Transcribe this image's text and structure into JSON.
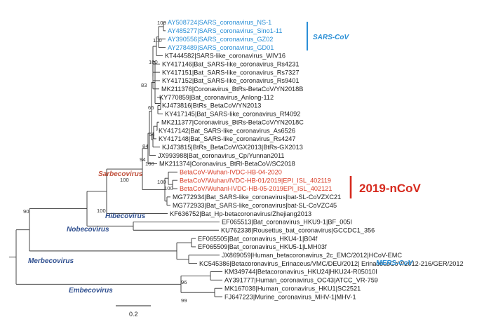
{
  "leaves": [
    {
      "label": "AY508724|SARS_coronavirus_NS-1",
      "group": "sars"
    },
    {
      "label": "AY485277|SARS_coronavirus_Sino1-11",
      "group": "sars"
    },
    {
      "label": "AY390556|SARS_coronavirus_GZ02",
      "group": "sars"
    },
    {
      "label": "AY278489|SARS_coronavirus_GD01",
      "group": "sars"
    },
    {
      "label": "KT444582|SARS-like_coronavirus_WIV16",
      "group": "other"
    },
    {
      "label": "KY417146|Bat_SARS-like_coronavirus_Rs4231",
      "group": "other"
    },
    {
      "label": "KY417151|Bat_SARS-like_coronavirus_Rs7327",
      "group": "other"
    },
    {
      "label": "KY417152|Bat_SARS-like_coronavirus_Rs9401",
      "group": "other"
    },
    {
      "label": "MK211376|Coronavirus_BtRs-BetaCoV/YN2018B",
      "group": "other"
    },
    {
      "label": "KY770859|Bat_coronavirus_Anlong-112",
      "group": "other"
    },
    {
      "label": "KJ473816|BtRs_BetaCoV/YN2013",
      "group": "other"
    },
    {
      "label": "KY417145|Bat_SARS-like_coronavirus_Rf4092",
      "group": "other"
    },
    {
      "label": "MK211377|Coronavirus_BtRs-BetaCoV/YN2018C",
      "group": "other"
    },
    {
      "label": "KY417142|Bat_SARS-like_coronavirus_As6526",
      "group": "other"
    },
    {
      "label": "KY417148|Bat_SARS-like_coronavirus_Rs4247",
      "group": "other"
    },
    {
      "label": "KJ473815|BtRs_BetaCoV/GX2013|BtRs-GX2013",
      "group": "other"
    },
    {
      "label": "JX993988|Bat_coronavirus_Cp/Yunnan2011",
      "group": "other"
    },
    {
      "label": "MK211374|Coronavirus_BtRl-BetaCoV/SC2018",
      "group": "other"
    },
    {
      "label": "BetaCoV-Wuhan-IVDC-HB-04-2020",
      "group": "ncov"
    },
    {
      "label": "BetaCoV/Wuhan/IVDC-HB-01/2019|EPI_ISL_402119",
      "group": "ncov"
    },
    {
      "label": "BetaCoV/Wuhanl-IVDC-HB-05-2019EPI_ISL_402121",
      "group": "ncov"
    },
    {
      "label": "MG772934|Bat_SARS-like_coronavirus|bat-SL-CoVZXC21",
      "group": "other"
    },
    {
      "label": "MG772933|Bat_SARS-like_coronavirus|bat-SL-CoVZC45",
      "group": "other"
    },
    {
      "label": "KF636752|Bat_Hp-betacoronavirus/Zhejiang2013",
      "group": "other"
    },
    {
      "label": "EF065513|Bat_coronavirus_HKU9-1|BF_005I",
      "group": "other"
    },
    {
      "label": "KU762338|Rousettus_bat_coronavirus|GCCDC1_356",
      "group": "other"
    },
    {
      "label": "EF065505|Bat_coronavirus_HKU4-1|B04f",
      "group": "other"
    },
    {
      "label": "EF065509|Bat_coronavirus_HKU5-1|LMH03f",
      "group": "other"
    },
    {
      "label": "JX869059|Human_betacoronavirus_2c_EMC/2012|HCoV-EMC",
      "group": "other"
    },
    {
      "label": "KC545386|Betacoronavirus_Erinaceus/VMC/DEU/2012| ErinaceusCoV/2012-216/GER/2012",
      "group": "other"
    },
    {
      "label": "KM349744|Betacoronavirus_HKU24|HKU24-R05010I",
      "group": "other"
    },
    {
      "label": "AY391777|Human_coronavirus_OC43|ATCC_VR-759",
      "group": "other"
    },
    {
      "label": "MK167038|Human_coronavirus_HKU1|SC2521",
      "group": "other"
    },
    {
      "label": "FJ647223|Murine_coronavirus_MHV-1|MHV-1",
      "group": "other"
    }
  ],
  "bootstrap_values": [
    "100",
    "100",
    "100",
    "83",
    "66",
    "64",
    "84",
    "94",
    "100",
    "100",
    "100",
    "90",
    "100",
    "100",
    "96",
    "99"
  ],
  "clade_labels": {
    "sarbecovirus": "Sarbecovirus",
    "hibecovirus": "Hibecovirus",
    "nobecovirus": "Nobecovirus",
    "merbecovirus": "Merbecovirus",
    "embecovirus": "Embecovirus"
  },
  "group_labels": {
    "sars_cov": "SARS-CoV",
    "ncov": "2019-nCoV",
    "mers_cov": "MERS-CoV"
  },
  "colors": {
    "sars": "#2a8fd6",
    "ncov": "#d9402b",
    "ncov_bar": "#d62a1e",
    "clade": "#2f4f8f",
    "sarbeco": "#c0503c"
  },
  "scale_bar": {
    "label": "0.2"
  }
}
